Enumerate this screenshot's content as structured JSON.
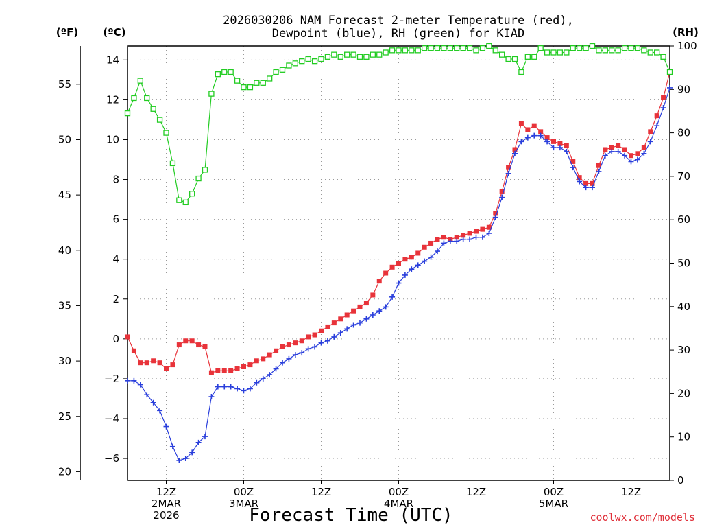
{
  "chart_data": {
    "type": "line",
    "title_lines": [
      "2026030206 NAM Forecast 2-meter Temperature (red),",
      "Dewpoint (blue), RH (green) for KIAD"
    ],
    "xlabel": "Forecast Time (UTC)",
    "credit": "coolwx.com/models",
    "axis_units": {
      "fahrenheit": "(ºF)",
      "celsius": "(ºC)",
      "rh": "(RH)"
    },
    "x_hours_range": [
      7,
      91
    ],
    "x_ticks": [
      {
        "hour": 13,
        "lines": [
          "12Z",
          "2MAR",
          "2026"
        ]
      },
      {
        "hour": 25,
        "lines": [
          "00Z",
          "3MAR"
        ]
      },
      {
        "hour": 37,
        "lines": [
          "12Z"
        ]
      },
      {
        "hour": 49,
        "lines": [
          "00Z",
          "4MAR"
        ]
      },
      {
        "hour": 61,
        "lines": [
          "12Z"
        ]
      },
      {
        "hour": 73,
        "lines": [
          "00Z",
          "5MAR"
        ]
      },
      {
        "hour": 85,
        "lines": [
          "12Z"
        ]
      }
    ],
    "celsius_ticks": [
      "−6",
      "−4",
      "−2",
      "0",
      "2",
      "4",
      "6",
      "8",
      "10",
      "12",
      "14"
    ],
    "celsius_tick_values": [
      -6,
      -4,
      -2,
      0,
      2,
      4,
      6,
      8,
      10,
      12,
      14
    ],
    "fahrenheit_ticks": [
      "20",
      "25",
      "30",
      "35",
      "40",
      "45",
      "50",
      "55"
    ],
    "fahrenheit_tick_values": [
      20,
      25,
      30,
      35,
      40,
      45,
      50,
      55
    ],
    "rh_ticks": [
      "0",
      "10",
      "20",
      "30",
      "40",
      "50",
      "60",
      "70",
      "80",
      "90",
      "100"
    ],
    "rh_tick_values": [
      0,
      10,
      20,
      30,
      40,
      50,
      60,
      70,
      80,
      90,
      100
    ],
    "celsius_range": [
      -7.1,
      14.7
    ],
    "rh_range": [
      0,
      100
    ],
    "colors": {
      "temperature": "#e8333a",
      "dewpoint": "#2a3fdc",
      "rh": "#22cc22",
      "grid": "#9a9a9a"
    },
    "series": [
      {
        "name": "Temperature",
        "unit": "C",
        "marker": "square",
        "x": [
          7,
          8,
          9,
          10,
          11,
          12,
          13,
          14,
          15,
          16,
          17,
          18,
          19,
          20,
          21,
          22,
          23,
          24,
          25,
          26,
          27,
          28,
          29,
          30,
          31,
          32,
          33,
          34,
          35,
          36,
          37,
          38,
          39,
          40,
          41,
          42,
          43,
          44,
          45,
          46,
          47,
          48,
          49,
          50,
          51,
          52,
          53,
          54,
          55,
          56,
          57,
          58,
          59,
          60,
          61,
          62,
          63,
          64,
          65,
          66,
          67,
          68,
          69,
          70,
          71,
          72,
          73,
          74,
          75,
          76,
          77,
          78,
          79,
          80,
          81,
          82,
          83,
          84,
          85,
          86,
          87,
          88,
          89,
          90,
          91
        ],
        "values": [
          0.1,
          -0.6,
          -1.2,
          -1.2,
          -1.1,
          -1.2,
          -1.5,
          -1.3,
          -0.3,
          -0.1,
          -0.1,
          -0.3,
          -0.4,
          -1.7,
          -1.6,
          -1.6,
          -1.6,
          -1.5,
          -1.4,
          -1.3,
          -1.1,
          -1.0,
          -0.8,
          -0.6,
          -0.4,
          -0.3,
          -0.2,
          -0.1,
          0.1,
          0.2,
          0.4,
          0.6,
          0.8,
          1.0,
          1.2,
          1.4,
          1.6,
          1.8,
          2.2,
          2.9,
          3.3,
          3.6,
          3.8,
          4.0,
          4.1,
          4.3,
          4.6,
          4.8,
          5.0,
          5.1,
          5.0,
          5.1,
          5.2,
          5.3,
          5.4,
          5.5,
          5.6,
          6.3,
          7.4,
          8.6,
          9.5,
          10.8,
          10.5,
          10.7,
          10.4,
          10.1,
          9.9,
          9.8,
          9.7,
          8.9,
          8.1,
          7.8,
          7.8,
          8.7,
          9.5,
          9.6,
          9.7,
          9.5,
          9.2,
          9.3,
          9.6,
          10.4,
          11.2,
          12.1,
          13.4
        ]
      },
      {
        "name": "Dewpoint",
        "unit": "C",
        "marker": "plus",
        "x": [
          7,
          8,
          9,
          10,
          11,
          12,
          13,
          14,
          15,
          16,
          17,
          18,
          19,
          20,
          21,
          22,
          23,
          24,
          25,
          26,
          27,
          28,
          29,
          30,
          31,
          32,
          33,
          34,
          35,
          36,
          37,
          38,
          39,
          40,
          41,
          42,
          43,
          44,
          45,
          46,
          47,
          48,
          49,
          50,
          51,
          52,
          53,
          54,
          55,
          56,
          57,
          58,
          59,
          60,
          61,
          62,
          63,
          64,
          65,
          66,
          67,
          68,
          69,
          70,
          71,
          72,
          73,
          74,
          75,
          76,
          77,
          78,
          79,
          80,
          81,
          82,
          83,
          84,
          85,
          86,
          87,
          88,
          89,
          90,
          91
        ],
        "values": [
          -2.1,
          -2.1,
          -2.3,
          -2.8,
          -3.2,
          -3.6,
          -4.4,
          -5.4,
          -6.1,
          -6.0,
          -5.7,
          -5.2,
          -4.9,
          -2.9,
          -2.4,
          -2.4,
          -2.4,
          -2.5,
          -2.6,
          -2.5,
          -2.2,
          -2.0,
          -1.8,
          -1.5,
          -1.2,
          -1.0,
          -0.8,
          -0.7,
          -0.5,
          -0.4,
          -0.2,
          -0.1,
          0.1,
          0.3,
          0.5,
          0.7,
          0.8,
          1.0,
          1.2,
          1.4,
          1.6,
          2.1,
          2.8,
          3.2,
          3.5,
          3.7,
          3.9,
          4.1,
          4.4,
          4.8,
          4.9,
          4.9,
          5.0,
          5.0,
          5.1,
          5.1,
          5.3,
          6.1,
          7.1,
          8.3,
          9.3,
          9.9,
          10.1,
          10.2,
          10.2,
          9.9,
          9.6,
          9.6,
          9.4,
          8.6,
          7.9,
          7.6,
          7.6,
          8.4,
          9.2,
          9.4,
          9.4,
          9.2,
          8.9,
          9.0,
          9.3,
          9.9,
          10.7,
          11.6,
          12.6
        ]
      },
      {
        "name": "RH",
        "unit": "%",
        "marker": "open-square",
        "x": [
          7,
          8,
          9,
          10,
          11,
          12,
          13,
          14,
          15,
          16,
          17,
          18,
          19,
          20,
          21,
          22,
          23,
          24,
          25,
          26,
          27,
          28,
          29,
          30,
          31,
          32,
          33,
          34,
          35,
          36,
          37,
          38,
          39,
          40,
          41,
          42,
          43,
          44,
          45,
          46,
          47,
          48,
          49,
          50,
          51,
          52,
          53,
          54,
          55,
          56,
          57,
          58,
          59,
          60,
          61,
          62,
          63,
          64,
          65,
          66,
          67,
          68,
          69,
          70,
          71,
          72,
          73,
          74,
          75,
          76,
          77,
          78,
          79,
          80,
          81,
          82,
          83,
          84,
          85,
          86,
          87,
          88,
          89,
          90,
          91
        ],
        "values": [
          84.5,
          88,
          92,
          88,
          85.5,
          83,
          80,
          73,
          64.5,
          64,
          66,
          69.5,
          71.5,
          89,
          93.5,
          94,
          94,
          92,
          90.5,
          90.5,
          91.5,
          91.5,
          92.5,
          94,
          94.5,
          95.5,
          96,
          96.5,
          97,
          96.5,
          97,
          97.5,
          98,
          97.5,
          98,
          98,
          97.5,
          97.5,
          98,
          98,
          98.5,
          99,
          99,
          99,
          99,
          99,
          99.5,
          99.5,
          99.5,
          99.5,
          99.5,
          99.5,
          99.5,
          99.5,
          99,
          99.5,
          100,
          99,
          98,
          97,
          97,
          94,
          97.5,
          97.5,
          99.5,
          98.5,
          98.5,
          98.5,
          98.5,
          99.5,
          99.5,
          99.5,
          100,
          99,
          99,
          99,
          99,
          99.5,
          99.5,
          99.5,
          99,
          98.5,
          98.5,
          97.5,
          94
        ]
      }
    ]
  }
}
